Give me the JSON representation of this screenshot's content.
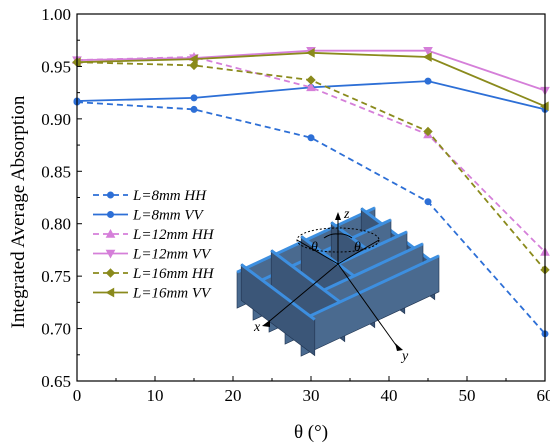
{
  "chart_data": {
    "type": "line",
    "title": "",
    "xlabel": "θ (°)",
    "ylabel": "Integrated Average Absorption",
    "xlim": [
      0,
      60
    ],
    "ylim": [
      0.65,
      1.0
    ],
    "x_ticks": [
      "0",
      "10",
      "20",
      "30",
      "40",
      "50",
      "60"
    ],
    "y_ticks": [
      "0.65",
      "0.70",
      "0.75",
      "0.80",
      "0.85",
      "0.90",
      "0.95",
      "1.00"
    ],
    "x": [
      0,
      15,
      30,
      45,
      60
    ],
    "legend_position": "center-left",
    "series": [
      {
        "name": "L=8mm HH",
        "color": "#2d6fd6",
        "dash": true,
        "marker": "circle",
        "values": [
          0.916,
          0.909,
          0.882,
          0.821,
          0.695
        ]
      },
      {
        "name": "L=8mm VV",
        "color": "#2d6fd6",
        "dash": false,
        "marker": "circle",
        "values": [
          0.917,
          0.92,
          0.93,
          0.936,
          0.909
        ]
      },
      {
        "name": "L=12mm HH",
        "color": "#d57fd9",
        "dash": true,
        "marker": "triangle-up",
        "values": [
          0.956,
          0.959,
          0.93,
          0.885,
          0.773
        ]
      },
      {
        "name": "L=12mm VV",
        "color": "#d57fd9",
        "dash": false,
        "marker": "triangle-down",
        "values": [
          0.956,
          0.958,
          0.965,
          0.965,
          0.927
        ]
      },
      {
        "name": "L=16mm HH",
        "color": "#8a8a1c",
        "dash": true,
        "marker": "diamond",
        "values": [
          0.954,
          0.951,
          0.937,
          0.888,
          0.756
        ]
      },
      {
        "name": "L=16mm VV",
        "color": "#8a8a1c",
        "dash": false,
        "marker": "triangle-left",
        "values": [
          0.954,
          0.957,
          0.963,
          0.959,
          0.912
        ]
      }
    ],
    "inset_labels": {
      "z": "z",
      "x": "x",
      "y": "y",
      "theta_left": "θ",
      "theta_right": "θ"
    }
  }
}
